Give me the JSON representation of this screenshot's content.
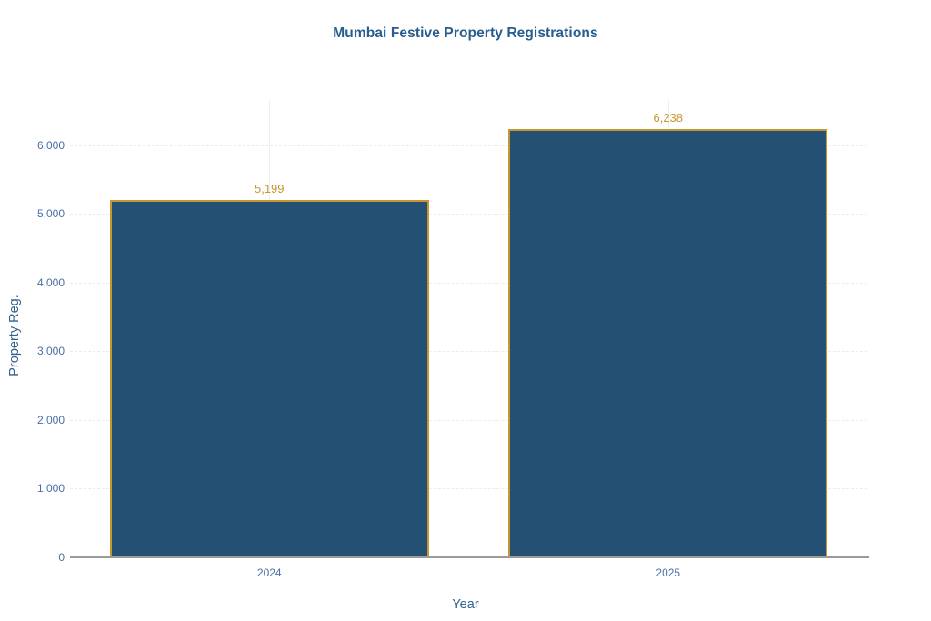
{
  "page": {
    "background": "#ffffff"
  },
  "chart_data": {
    "type": "bar",
    "title": "Mumbai Festive Property Registrations",
    "xlabel": "Year",
    "ylabel": "Property Reg.",
    "categories": [
      "2024",
      "2025"
    ],
    "values": [
      5199,
      6238
    ],
    "value_labels": [
      "5,199",
      "6,238"
    ],
    "yticks": [
      0,
      1000,
      2000,
      3000,
      4000,
      5000,
      6000
    ],
    "ytick_labels": [
      "0",
      "1,000",
      "2,000",
      "3,000",
      "4,000",
      "5,000",
      "6,000"
    ],
    "ylim": [
      0,
      6660
    ],
    "grid": true,
    "legend_position": "none",
    "colors": {
      "bar_fill": "#245173",
      "bar_border": "#c8962e",
      "value_label": "#c8962e",
      "title": "#275d8f",
      "axis_title": "#33618f",
      "tick_label": "#4a6fa5",
      "axis_line": "#9a9a9a",
      "gridline": "#ececec"
    }
  }
}
